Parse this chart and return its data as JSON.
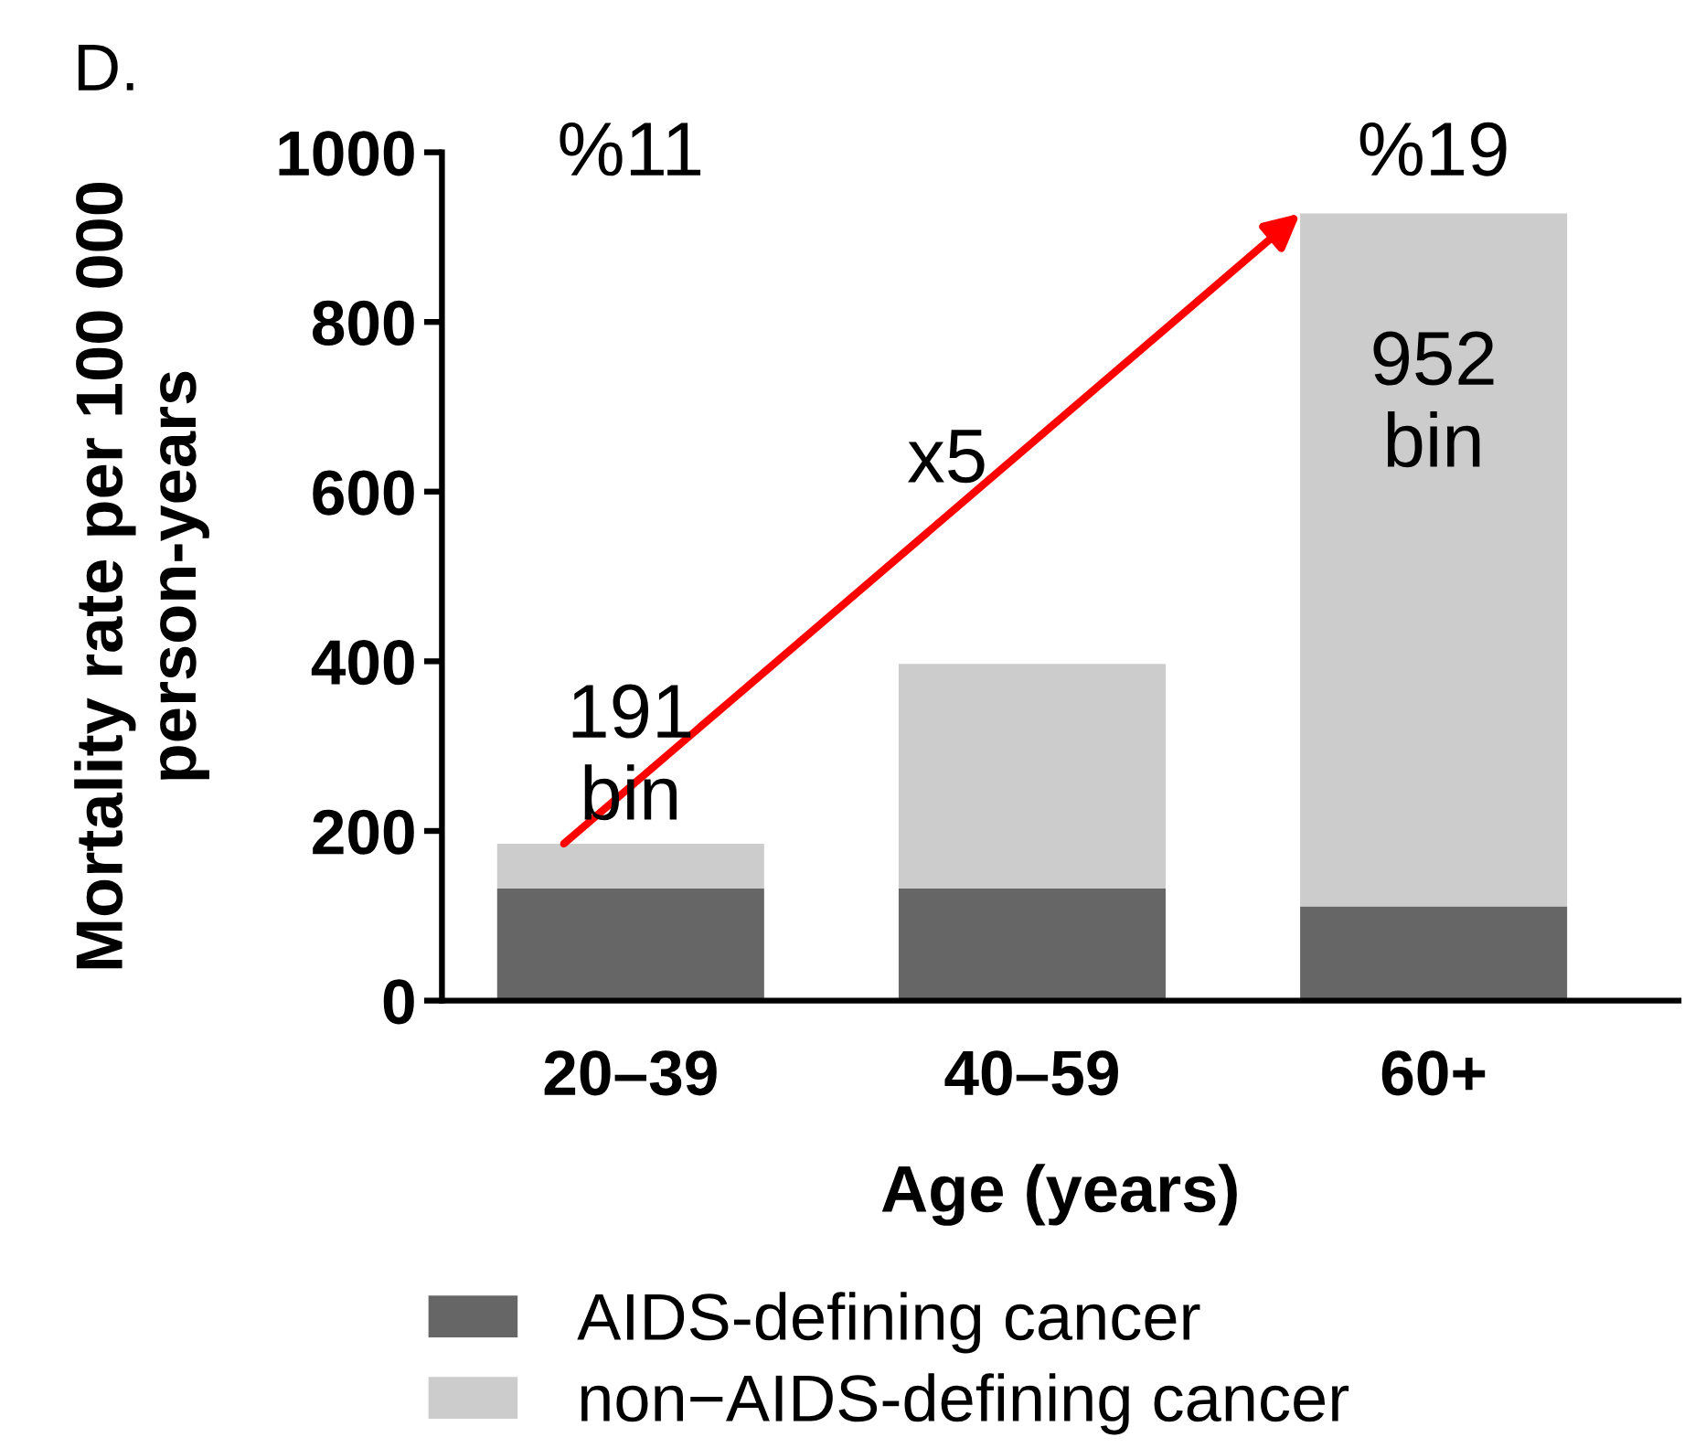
{
  "chart_data": {
    "type": "bar",
    "title": "D.",
    "xlabel": "Age (years)",
    "ylabel": "Mortality rate per 100 000\nperson-years",
    "categories": [
      "20–39",
      "40–59",
      "60+"
    ],
    "stacked": true,
    "series": [
      {
        "name": "AIDS-defining cancer",
        "color": "#666666",
        "values": [
          132,
          132,
          111
        ]
      },
      {
        "name": "non−AIDS-defining cancer",
        "color": "#cccccc",
        "values": [
          53,
          265,
          817
        ]
      }
    ],
    "ylim": [
      0,
      1000
    ],
    "yticks": [
      0,
      200,
      400,
      600,
      800,
      1000
    ],
    "legend": "bottom",
    "annotations": [
      "%11",
      "%19",
      "191\nbin",
      "952\nbin",
      "x5"
    ]
  }
}
